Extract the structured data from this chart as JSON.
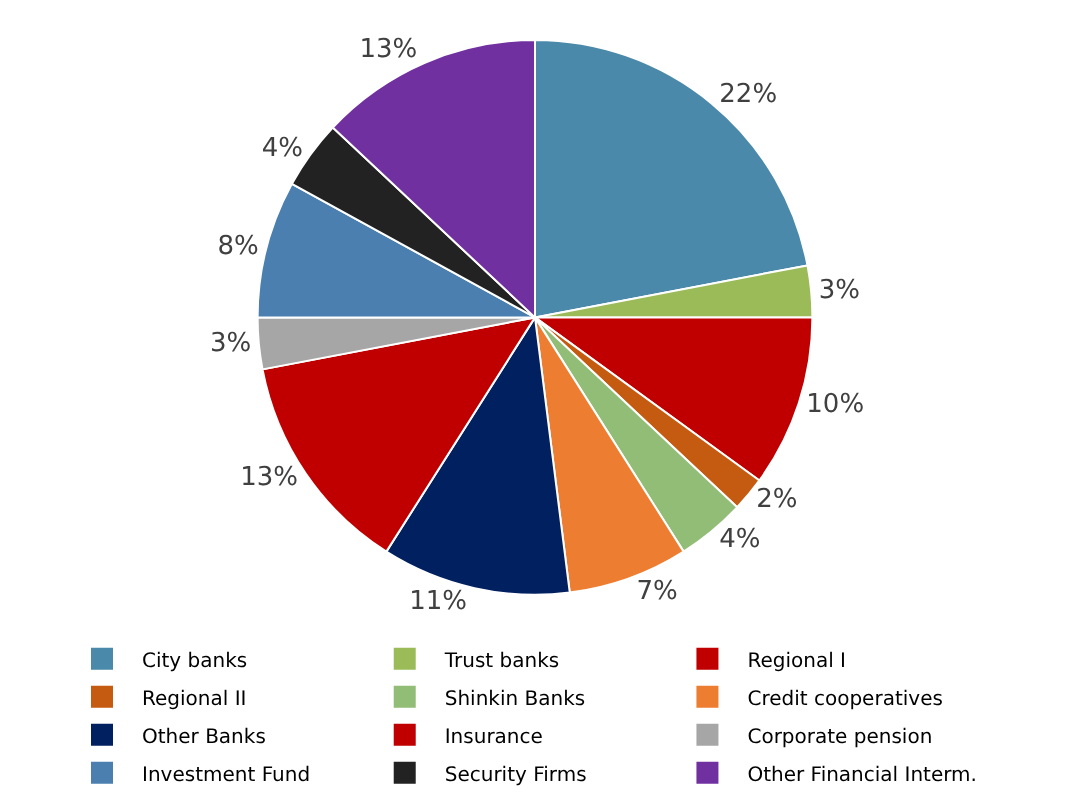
{
  "chart_data": {
    "type": "pie",
    "categories": [
      "City banks",
      "Trust banks",
      "Regional I",
      "Regional II",
      "Shinkin Banks",
      "Credit cooperatives",
      "Other Banks",
      "Insurance",
      "Corporate pension",
      "Investment Fund",
      "Security Firms",
      "Other Financial Interm."
    ],
    "values": [
      22,
      3,
      10,
      2,
      4,
      7,
      11,
      13,
      3,
      8,
      4,
      13
    ],
    "colors": [
      "#4a89aa",
      "#9bbb59",
      "#c00000",
      "#c55a11",
      "#92bd76",
      "#ed7d31",
      "#002060",
      "#c00000",
      "#a6a6a6",
      "#4a7fb0",
      "#222222",
      "#7030a0"
    ],
    "value_labels": [
      "22%",
      "3%",
      "10%",
      "2%",
      "4%",
      "7%",
      "11%",
      "13%",
      "3%",
      "8%",
      "4%",
      "13%"
    ],
    "legend": "bottom"
  }
}
